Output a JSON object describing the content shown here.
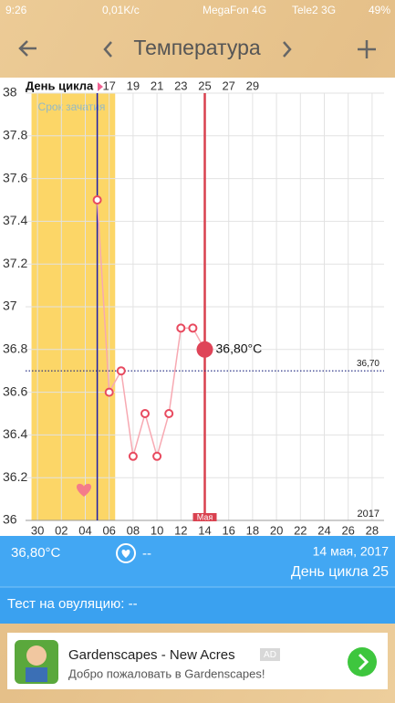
{
  "status_bar": {
    "time": "9:26",
    "speed": "0,01K/c",
    "carrier1": "MegaFon 4G",
    "carrier2": "Tele2 3G",
    "battery": "49%"
  },
  "toolbar": {
    "title": "Температура"
  },
  "chart_data": {
    "type": "line",
    "x_title": "День цикла",
    "x": [
      16,
      17,
      18,
      19,
      20,
      21,
      22,
      23,
      24,
      25
    ],
    "series": [
      {
        "color": "#e84a5f",
        "values": [
          37.5,
          36.6,
          36.7,
          36.3,
          36.5,
          36.3,
          36.5,
          36.9,
          36.9,
          36.8
        ]
      }
    ],
    "xlim": [
      10,
      40
    ],
    "ylim": [
      36,
      38
    ],
    "yticks": [
      36,
      36.2,
      36.4,
      36.6,
      36.8,
      37,
      37.2,
      37.4,
      37.6,
      37.8,
      38
    ],
    "xticks": [
      {
        "value": 11,
        "label": "30"
      },
      {
        "value": 13,
        "label": "02"
      },
      {
        "value": 15,
        "label": "04"
      },
      {
        "value": 17,
        "label": "06"
      },
      {
        "value": 19,
        "label": "08"
      },
      {
        "value": 21,
        "label": "10"
      },
      {
        "value": 23,
        "label": "12"
      },
      {
        "value": 25,
        "label": "14"
      },
      {
        "value": 27,
        "label": "16"
      },
      {
        "value": 29,
        "label": "18"
      },
      {
        "value": 31,
        "label": "20"
      },
      {
        "value": 33,
        "label": "22"
      },
      {
        "value": 35,
        "label": "24"
      },
      {
        "value": 37,
        "label": "26"
      },
      {
        "value": 39,
        "label": "28"
      }
    ],
    "x2ticks": [
      17,
      19,
      21,
      23,
      25,
      27,
      29
    ],
    "grid": true,
    "reference_line": {
      "value": 36.7,
      "label": "36,70",
      "color": "#1a237e"
    },
    "highlight": {
      "index": 9,
      "label": "36,80°C"
    },
    "fertile_window": {
      "label": "Срок зачатия",
      "range": [
        10.5,
        17.5
      ],
      "color": "#fcd667"
    },
    "ovulation_x": 16,
    "today_x": 25,
    "month_label": "Мая",
    "year_label": "2017"
  },
  "summary": {
    "temperature": "36,80°C",
    "mark": "--",
    "date": "14 мая, 2017",
    "cycle_day": "День цикла 25"
  },
  "ovulation_test": "Тест на овуляцию: --",
  "ad": {
    "title": "Gardenscapes - New Acres",
    "badge": "AD",
    "text": "Добро пожаловать в Gardenscapes!"
  }
}
